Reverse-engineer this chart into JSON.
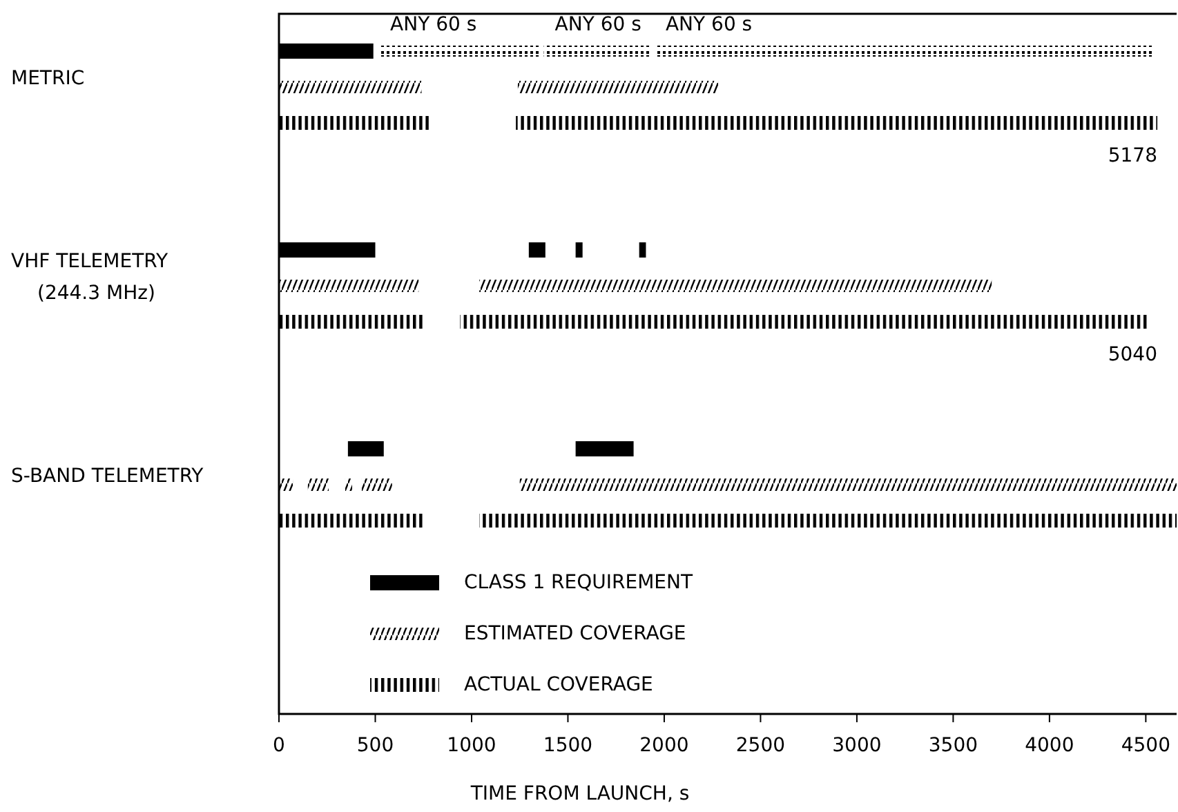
{
  "chart_data": {
    "type": "bar",
    "orientation": "horizontal",
    "categories": [
      "METRIC",
      "VHF TELEMETRY\n(244.3 MHz)",
      "S-BAND TELEMETRY"
    ],
    "xlabel": "TIME FROM LAUNCH, s",
    "xlim": [
      0,
      4660
    ],
    "xticks": [
      0,
      500,
      1000,
      1500,
      2000,
      2500,
      3000,
      3500,
      4000,
      4500
    ],
    "grid": false,
    "legend": "bottom left",
    "series": [
      {
        "name": "CLASS 1 REQUIREMENT",
        "line_style": "solid",
        "color": "#000000",
        "base": [
          0,
          0,
          358
        ],
        "values": [
          490,
          500,
          186
        ]
      },
      {
        "line_style": "solid",
        "color": "#000000",
        "base": [
          null,
          1297,
          1540
        ],
        "values": [
          null,
          86,
          301
        ]
      },
      {
        "line_style": "solid",
        "color": "#000000",
        "base": [
          null,
          1540,
          null
        ],
        "values": [
          null,
          36,
          null
        ]
      },
      {
        "line_style": "solid",
        "color": "#000000",
        "base": [
          null,
          1870,
          null
        ],
        "values": [
          null,
          35,
          null
        ]
      },
      {
        "name": "ESTIMATED COVERAGE",
        "line_style": "dashed",
        "color": "#000000",
        "base": [
          0,
          0,
          0
        ],
        "values": [
          740,
          725,
          72
        ]
      },
      {
        "line_style": "dashed",
        "color": "#000000",
        "base": [
          1240,
          1040,
          150
        ],
        "values": [
          1040,
          2660,
          108
        ]
      },
      {
        "line_style": "dashed",
        "color": "#000000",
        "base": [
          null,
          null,
          344
        ],
        "values": [
          null,
          null,
          36
        ]
      },
      {
        "line_style": "dashed",
        "color": "#000000",
        "base": [
          null,
          null,
          430
        ],
        "values": [
          null,
          null,
          157
        ]
      },
      {
        "line_style": "dashed",
        "color": "#000000",
        "base": [
          null,
          null,
          1250
        ],
        "values": [
          null,
          null,
          3410
        ]
      },
      {
        "name": "ACTUAL COVERAGE",
        "line_style": "dotted",
        "color": "#000000",
        "base": [
          0,
          0,
          0
        ],
        "values": [
          780,
          750,
          745
        ]
      },
      {
        "line_style": "dotted",
        "color": "#000000",
        "base": [
          1230,
          940,
          1040
        ],
        "values": [
          3330,
          3580,
          3620
        ]
      },
      {
        "line_style": "dotted",
        "marker": "square",
        "color": "#000000",
        "base": [
          520,
          null,
          null
        ],
        "values": [
          840,
          null,
          null
        ]
      },
      {
        "line_style": "dotted",
        "marker": "square",
        "color": "#000000",
        "base": [
          1375,
          null,
          null
        ],
        "values": [
          560,
          null,
          null
        ]
      },
      {
        "line_style": "dotted",
        "marker": "square",
        "color": "#000000",
        "base": [
          1950,
          null,
          null
        ],
        "values": [
          2590,
          null,
          null
        ]
      }
    ],
    "annotations": [
      "ANY 60 s",
      "ANY 60 s",
      "ANY 60 s",
      "5178",
      "5040"
    ]
  }
}
